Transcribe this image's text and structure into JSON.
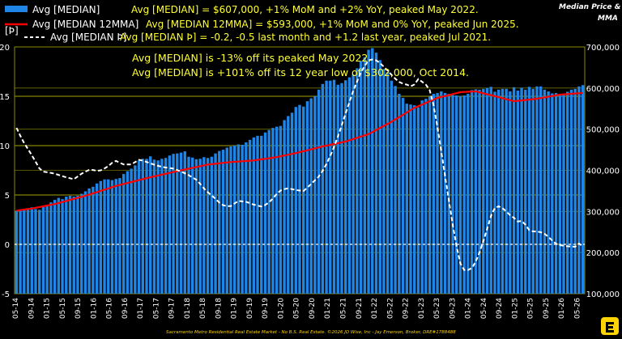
{
  "chart_data": {
    "type": "bar+line",
    "legend": [
      {
        "label": "Avg [MEDIAN]",
        "text": "Avg [MEDIAN] = $607,000, +1% MoM and +2% YoY, peaked May 2022.",
        "color": "#1f86e8",
        "style": "bar"
      },
      {
        "label": "Avg [MEDIAN 12MMA]",
        "text": "Avg [MEDIAN 12MMA] = $593,000, +1% MoM and 0% YoY, peaked Jun 2025.",
        "color": "#ff0000",
        "style": "line"
      },
      {
        "label": "Avg [MEDIAN Þ]",
        "text": "Avg [MEDIAN Þ] = -0.2, -0.5 last month and +1.2 last year, peaked Jul 2021.",
        "color": "#ffffff",
        "style": "dashed"
      }
    ],
    "annotations": [
      "Avg [MEDIAN] is -13% off its  peaked May 2022.",
      "Avg [MEDIAN] is +101% off its 12 year low of $302,000, Oct 2014."
    ],
    "corner_title": [
      "Median Price &",
      "MMA"
    ],
    "left_axis_label": "[Þ]",
    "left_ylim": [
      -5,
      20
    ],
    "left_ticks": [
      "-5",
      "0",
      "5",
      "10",
      "15",
      "20"
    ],
    "right_ylim": [
      100000,
      700000
    ],
    "right_ticks": [
      "100,000",
      "200,000",
      "300,000",
      "400,000",
      "500,000",
      "600,000",
      "700,000"
    ],
    "x_ticks": [
      "05-14",
      "09-14",
      "01-15",
      "05-15",
      "09-15",
      "01-16",
      "05-16",
      "09-16",
      "01-17",
      "05-17",
      "09-17",
      "01-18",
      "05-18",
      "09-18",
      "01-19",
      "05-19",
      "09-19",
      "01-20",
      "05-20",
      "09-20",
      "01-21",
      "05-21",
      "09-21",
      "01-22",
      "05-22",
      "09-22",
      "01-23",
      "05-23",
      "09-23",
      "01-24",
      "05-24",
      "09-24",
      "01-25",
      "05-25",
      "09-25",
      "01-26",
      "05-26"
    ],
    "median_bars": [
      302000,
      305000,
      303000,
      308000,
      310000,
      306000,
      304000,
      312000,
      315000,
      322000,
      328000,
      333000,
      330000,
      336000,
      338000,
      336000,
      338000,
      343000,
      349000,
      356000,
      360000,
      368000,
      374000,
      378000,
      378000,
      376000,
      379000,
      381000,
      391000,
      398000,
      404000,
      412000,
      424000,
      428000,
      428000,
      434000,
      426000,
      424000,
      428000,
      430000,
      436000,
      440000,
      441000,
      443000,
      446000,
      433000,
      431000,
      427000,
      428000,
      432000,
      430000,
      433000,
      441000,
      447000,
      450000,
      455000,
      458000,
      460000,
      463000,
      462000,
      468000,
      474000,
      480000,
      484000,
      484000,
      492000,
      498000,
      503000,
      506000,
      508000,
      522000,
      532000,
      540000,
      554000,
      559000,
      555000,
      568000,
      575000,
      580000,
      596000,
      610000,
      618000,
      618000,
      620000,
      608000,
      612000,
      619000,
      626000,
      633000,
      648000,
      666000,
      675000,
      693000,
      697000,
      686000,
      668000,
      646000,
      639000,
      618000,
      605000,
      586000,
      576000,
      562000,
      560000,
      558000,
      553000,
      570000,
      574000,
      580000,
      586000,
      588000,
      592000,
      588000,
      586000,
      583000,
      582000,
      581000,
      582000,
      586000,
      595000,
      597000,
      596000,
      598000,
      600000,
      603000,
      591000,
      596000,
      598000,
      598000,
      592000,
      602000,
      594000,
      601000,
      596000,
      603000,
      598000,
      604000,
      604000,
      596000,
      592000,
      587000,
      588000,
      584000,
      586000,
      591000,
      596000,
      598000,
      604000,
      607000
    ],
    "mma12": [
      null,
      null,
      null,
      null,
      null,
      null,
      null,
      null,
      null,
      null,
      null,
      null,
      null,
      null,
      null,
      null,
      null,
      null,
      null,
      null,
      null,
      null,
      null,
      null,
      null,
      null,
      null,
      null,
      null,
      null,
      null,
      null,
      null,
      null,
      null,
      null,
      null,
      null,
      null,
      null,
      null,
      null,
      null,
      null,
      null,
      null,
      null,
      null,
      null,
      null,
      null,
      null,
      null,
      null,
      null,
      null,
      null,
      null,
      null,
      null,
      null,
      null,
      null,
      null,
      null,
      null,
      null,
      null,
      null,
      null,
      null,
      null,
      null,
      null,
      null,
      null,
      null,
      null,
      null,
      null,
      null,
      null,
      null,
      null,
      null,
      null,
      null,
      null,
      null,
      null,
      null,
      null,
      null,
      null,
      null,
      null,
      null,
      null,
      null,
      null,
      null,
      null,
      null,
      null,
      null,
      null,
      null,
      null,
      null,
      null,
      null,
      null,
      null,
      null,
      null,
      null,
      null,
      null,
      null,
      null,
      null,
      null,
      null,
      null,
      null,
      null,
      null,
      null,
      null,
      null,
      null,
      null,
      null,
      null,
      null,
      null,
      null,
      null,
      null,
      null,
      null,
      null,
      null,
      null,
      null,
      null,
      null,
      null,
      null
    ],
    "mma12_keys": [
      [
        0,
        302000
      ],
      [
        4,
        307000
      ],
      [
        10,
        318000
      ],
      [
        18,
        338000
      ],
      [
        26,
        362000
      ],
      [
        34,
        381000
      ],
      [
        42,
        398000
      ],
      [
        50,
        414000
      ],
      [
        56,
        420000
      ],
      [
        62,
        424000
      ],
      [
        68,
        432000
      ],
      [
        74,
        444000
      ],
      [
        80,
        458000
      ],
      [
        86,
        470000
      ],
      [
        92,
        488000
      ],
      [
        98,
        518000
      ],
      [
        104,
        552000
      ],
      [
        110,
        576000
      ],
      [
        116,
        590000
      ],
      [
        120,
        592000
      ],
      [
        126,
        578000
      ],
      [
        130,
        568000
      ],
      [
        136,
        574000
      ],
      [
        142,
        584000
      ],
      [
        148,
        588000
      ],
      [
        154,
        590000
      ],
      [
        160,
        596000
      ],
      [
        164,
        596000
      ],
      [
        170,
        590000
      ],
      [
        174,
        586000
      ],
      [
        180,
        588000
      ],
      [
        184,
        593000
      ]
    ],
    "delta_keys": [
      [
        0,
        11.8
      ],
      [
        3,
        10.5
      ],
      [
        7,
        9.2
      ],
      [
        12,
        7.4
      ],
      [
        18,
        7.2
      ],
      [
        24,
        6.8
      ],
      [
        28,
        6.6
      ],
      [
        32,
        7.2
      ],
      [
        36,
        7.6
      ],
      [
        40,
        7.4
      ],
      [
        44,
        7.8
      ],
      [
        48,
        8.5
      ],
      [
        52,
        8.1
      ],
      [
        56,
        8.1
      ],
      [
        60,
        8.6
      ],
      [
        64,
        8.3
      ],
      [
        68,
        8.0
      ],
      [
        72,
        7.8
      ],
      [
        76,
        7.7
      ],
      [
        80,
        7.4
      ],
      [
        84,
        7.0
      ],
      [
        88,
        6.5
      ],
      [
        92,
        5.5
      ],
      [
        96,
        4.8
      ],
      [
        100,
        4.0
      ],
      [
        104,
        3.8
      ],
      [
        108,
        4.4
      ],
      [
        112,
        4.3
      ],
      [
        116,
        4.0
      ],
      [
        120,
        3.8
      ],
      [
        124,
        4.4
      ],
      [
        128,
        5.4
      ],
      [
        132,
        5.7
      ],
      [
        136,
        5.5
      ],
      [
        140,
        5.4
      ],
      [
        144,
        6.2
      ],
      [
        148,
        7.0
      ],
      [
        152,
        8.5
      ],
      [
        156,
        10.5
      ],
      [
        160,
        13.0
      ],
      [
        164,
        15.5
      ],
      [
        168,
        17.5
      ],
      [
        172,
        18.8
      ],
      [
        176,
        18.6
      ],
      [
        180,
        17.8
      ],
      [
        184,
        16.9
      ],
      [
        186,
        16.5
      ],
      [
        188,
        16.3
      ],
      [
        190,
        16.2
      ],
      [
        192,
        16.0
      ],
      [
        194,
        16.2
      ],
      [
        196,
        16.8
      ],
      [
        198,
        16.4
      ],
      [
        200,
        16.1
      ],
      [
        202,
        15.4
      ],
      [
        204,
        13.3
      ],
      [
        206,
        10.8
      ],
      [
        208,
        8.1
      ],
      [
        210,
        5.4
      ],
      [
        212,
        2.7
      ],
      [
        214,
        0.3
      ],
      [
        216,
        -1.8
      ],
      [
        218,
        -2.6
      ],
      [
        220,
        -2.6
      ],
      [
        222,
        -2.4
      ],
      [
        224,
        -1.7
      ],
      [
        226,
        -0.6
      ],
      [
        228,
        0.6
      ],
      [
        230,
        2.0
      ],
      [
        232,
        3.4
      ],
      [
        234,
        3.9
      ],
      [
        236,
        3.8
      ],
      [
        238,
        3.5
      ],
      [
        240,
        3.0
      ],
      [
        242,
        2.8
      ],
      [
        244,
        2.3
      ],
      [
        246,
        2.4
      ],
      [
        248,
        2.0
      ],
      [
        250,
        1.4
      ],
      [
        252,
        1.3
      ],
      [
        254,
        1.3
      ],
      [
        256,
        1.2
      ],
      [
        258,
        1.0
      ],
      [
        260,
        0.6
      ],
      [
        262,
        0.2
      ],
      [
        264,
        -0.1
      ],
      [
        266,
        -0.1
      ],
      [
        268,
        -0.2
      ],
      [
        270,
        -0.2
      ],
      [
        272,
        -0.3
      ],
      [
        274,
        0.1
      ],
      [
        276,
        -0.2
      ]
    ],
    "footer": "Sacramento Metro Residential Real Estate Market - No B.S. Real Estate. ©2026 JD Wise, Inc - Jay Emerson, Broker, DRE#1788488",
    "grid": "horizontal-yellow",
    "accent_colors": {
      "bar": "#1f86e8",
      "mma": "#ff0000",
      "delta": "#ffffff",
      "grid": "#b5b500",
      "text": "#ffff33"
    }
  }
}
